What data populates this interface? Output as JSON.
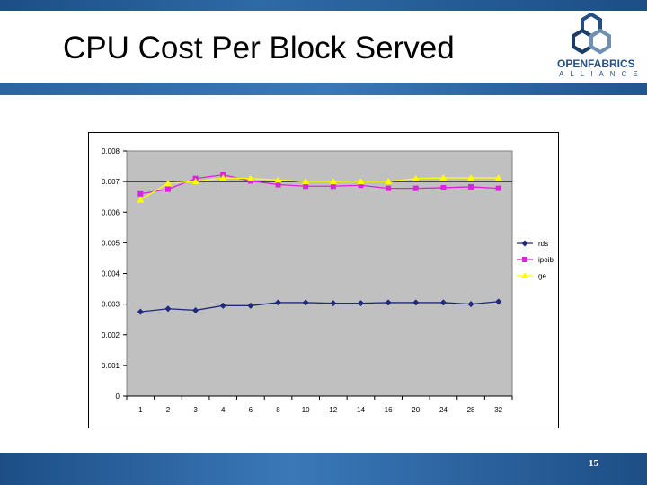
{
  "slide": {
    "title": "CPU Cost Per Block Served",
    "page_number": "15",
    "logo": {
      "line1": "OPENFABRICS",
      "line2": "ALLIANCE"
    }
  },
  "colors": {
    "rds": "#1f2a7a",
    "ipoib": "#e020e0",
    "ge": "#ffff00",
    "plot_bg": "#c0c0c0",
    "band": "#1d4e86"
  },
  "chart_data": {
    "type": "line",
    "title": "",
    "xlabel": "",
    "ylabel": "",
    "categories": [
      "1",
      "2",
      "3",
      "4",
      "6",
      "8",
      "10",
      "12",
      "14",
      "16",
      "20",
      "24",
      "28",
      "32"
    ],
    "ylim": [
      0,
      0.008
    ],
    "yticks": [
      "0",
      "0.001",
      "0.002",
      "0.003",
      "0.004",
      "0.005",
      "0.006",
      "0.007",
      "0.008"
    ],
    "grid": "major y at 0.007 only",
    "legend_position": "right",
    "series": [
      {
        "name": "rds",
        "marker": "diamond",
        "color": "#1f2a7a",
        "values": [
          0.00275,
          0.00285,
          0.0028,
          0.00295,
          0.00295,
          0.00305,
          0.00305,
          0.00303,
          0.00303,
          0.00305,
          0.00305,
          0.00305,
          0.003,
          0.00308
        ]
      },
      {
        "name": "ipoib",
        "marker": "square",
        "color": "#e020e0",
        "values": [
          0.0066,
          0.00675,
          0.0071,
          0.00722,
          0.00702,
          0.0069,
          0.00685,
          0.00685,
          0.00688,
          0.00678,
          0.00678,
          0.0068,
          0.00683,
          0.00678
        ]
      },
      {
        "name": "ge",
        "marker": "triangle",
        "color": "#ffff00",
        "values": [
          0.0064,
          0.00695,
          0.007,
          0.00712,
          0.0071,
          0.00705,
          0.007,
          0.007,
          0.007,
          0.007,
          0.0071,
          0.00712,
          0.00712,
          0.00712
        ]
      }
    ]
  }
}
